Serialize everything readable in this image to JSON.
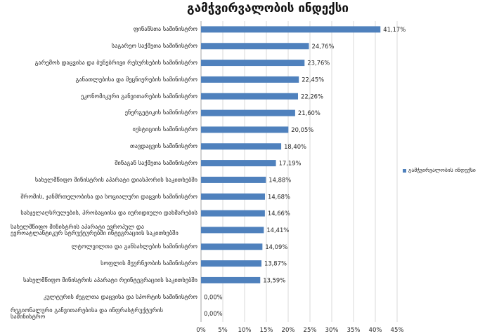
{
  "chart_data": {
    "type": "bar",
    "orientation": "horizontal",
    "title": "გამჭვირვალობის ინდექსი",
    "categories": [
      "ფინანსთა სამინისტრო",
      "საგარეო საქმეთა სამინისტრო",
      "გარემოს დაცვისა და ბუნებრივი რესურსების სამინისტრო",
      "განათლებისა და მეცნიერების სამინისტრო",
      "ეკონომიკური განვითარების სამინისტრო",
      "ენერგეტიკის სამინისტრო",
      "იუსტიციის სამინისტრო",
      "თავდაცვის სამინისტრო",
      "შინაგან საქმეთა სამინისტრო",
      "სახელმწიფო მინისტრის აპარატი დიასპორის საკითხებში",
      "შრომის, ჯანმრთელობისა და სოციალური დაცვის სამინისტრო",
      "სასჯელაღსრულების, პრობაციისა და იურიდიული დახმარების",
      "სახელმწიფო მინისტრის აპარატი ევროპულ და ევროატლანტიკურ სტრუქტურებში ინტეგრაციის საკითხებში",
      "ლტოლვილთა და განსახლების სამინისტრო",
      "სოფლის მეურნეობის სამინისტრო",
      "სახელმწიფო მინისტრის აპარატი რეინტეგრაციის საკითხებში",
      "კულტურის ძეგლთა დაცვისა და სპორტის სამინისტრო",
      "რეგიონალური განვითარებისა და ინფრასტრუქტურის სამინისტრო"
    ],
    "series": [
      {
        "name": "გამჭვირვალობის ინდექსი",
        "color": "#4f81bd",
        "values": [
          41.17,
          24.76,
          23.76,
          22.45,
          22.26,
          21.6,
          20.05,
          18.4,
          17.19,
          14.88,
          14.68,
          14.66,
          14.41,
          14.09,
          13.87,
          13.59,
          0.0,
          0.0
        ],
        "labels": [
          "41,17%",
          "24,76%",
          "23,76%",
          "22,45%",
          "22,26%",
          "21,60%",
          "20,05%",
          "18,40%",
          "17,19%",
          "14,88%",
          "14,68%",
          "14,66%",
          "14,41%",
          "14,09%",
          "13,87%",
          "13,59%",
          "0,00%",
          "0,00%"
        ]
      }
    ],
    "xlim": [
      0,
      45
    ],
    "xticks": [
      0,
      5,
      10,
      15,
      20,
      25,
      30,
      35,
      40,
      45
    ],
    "xtick_labels": [
      "0%",
      "5%",
      "10%",
      "15%",
      "20%",
      "25%",
      "30%",
      "35%",
      "40%",
      "45%"
    ],
    "grid": true,
    "legend": "right"
  }
}
